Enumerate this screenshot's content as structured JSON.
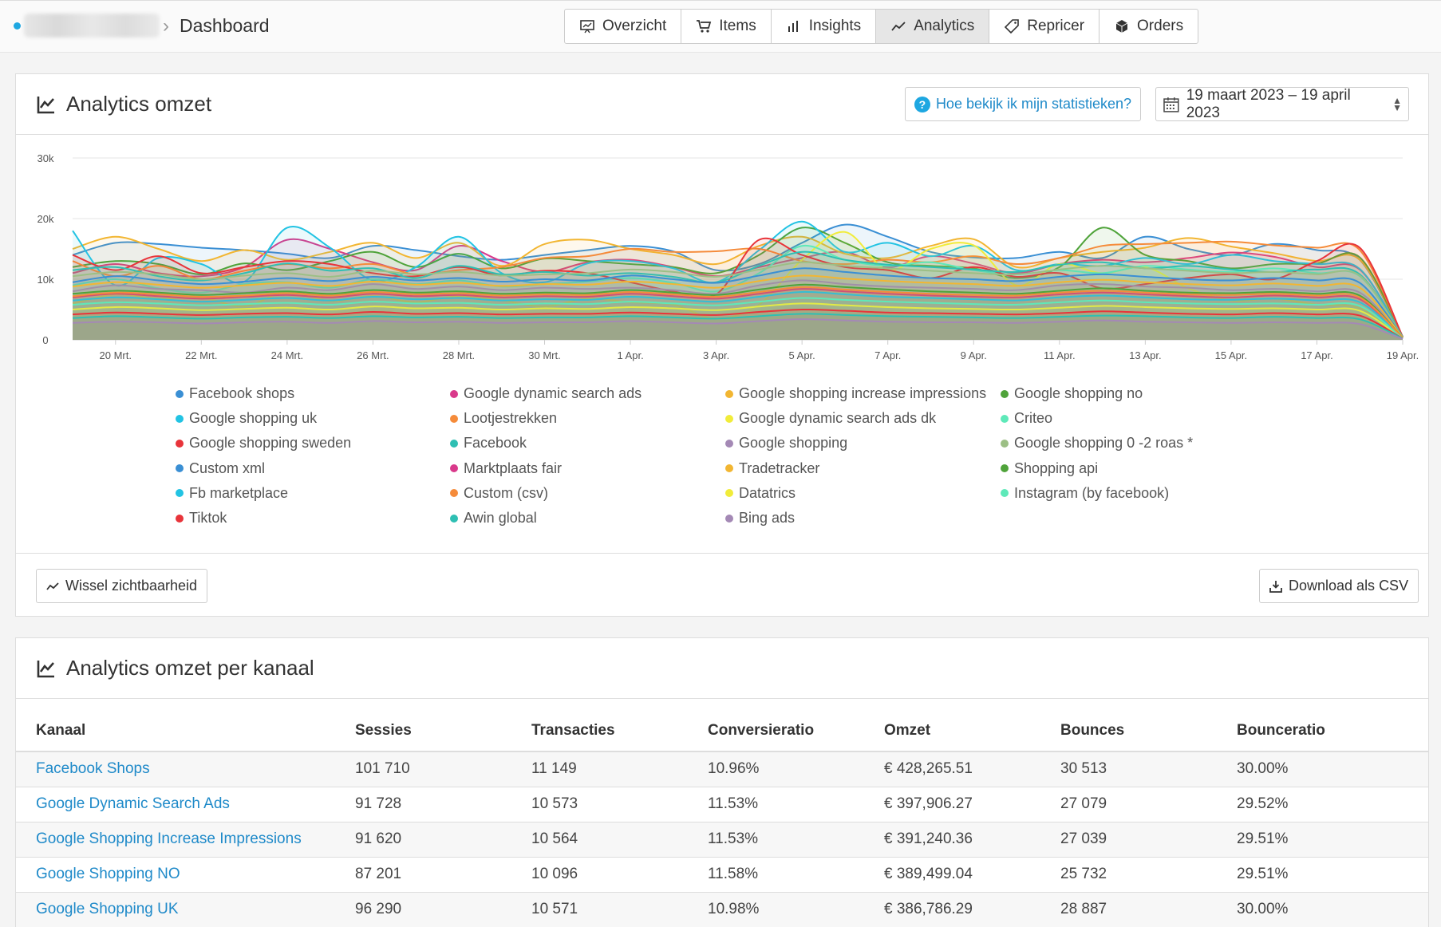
{
  "breadcrumb": {
    "title": "Dashboard"
  },
  "nav": [
    {
      "label": "Overzicht",
      "icon": "presentation-icon"
    },
    {
      "label": "Items",
      "icon": "cart-icon"
    },
    {
      "label": "Insights",
      "icon": "bars-icon"
    },
    {
      "label": "Analytics",
      "icon": "trend-icon",
      "active": true
    },
    {
      "label": "Repricer",
      "icon": "tag-icon"
    },
    {
      "label": "Orders",
      "icon": "box-icon"
    }
  ],
  "panel1": {
    "title": "Analytics omzet",
    "help_label": "Hoe bekijk ik mijn statistieken?",
    "date_range": "19 maart 2023 – 19 april 2023",
    "toggle_label": "Wissel zichtbaarheid",
    "csv_label": "Download als CSV"
  },
  "chart_data": {
    "type": "area",
    "ylim": [
      0,
      30000
    ],
    "y_ticks": [
      {
        "value": 0,
        "label": "0"
      },
      {
        "value": 10000,
        "label": "10k"
      },
      {
        "value": 20000,
        "label": "20k"
      },
      {
        "value": 30000,
        "label": "30k"
      }
    ],
    "x_tick_labels": [
      "20 Mrt.",
      "22 Mrt.",
      "24 Mrt.",
      "26 Mrt.",
      "28 Mrt.",
      "30 Mrt.",
      "1 Apr.",
      "3 Apr.",
      "5 Apr.",
      "7 Apr.",
      "9 Apr.",
      "11 Apr.",
      "13 Apr.",
      "15 Apr.",
      "17 Apr.",
      "19 Apr."
    ],
    "x": [
      "19 Mrt.",
      "20 Mrt.",
      "21 Mrt.",
      "22 Mrt.",
      "23 Mrt.",
      "24 Mrt.",
      "25 Mrt.",
      "26 Mrt.",
      "27 Mrt.",
      "28 Mrt.",
      "29 Mrt.",
      "30 Mrt.",
      "31 Mrt.",
      "1 Apr.",
      "2 Apr.",
      "3 Apr.",
      "4 Apr.",
      "5 Apr.",
      "6 Apr.",
      "7 Apr.",
      "8 Apr.",
      "9 Apr.",
      "10 Apr.",
      "11 Apr.",
      "12 Apr.",
      "13 Apr.",
      "14 Apr.",
      "15 Apr.",
      "16 Apr.",
      "17 Apr.",
      "18 Apr.",
      "19 Apr."
    ],
    "series": [
      {
        "name": "Facebook shops",
        "color": "#3a8fd4",
        "values": [
          14000,
          16000,
          15800,
          15200,
          14800,
          14200,
          13500,
          15500,
          14800,
          13800,
          13200,
          14000,
          14800,
          15500,
          14600,
          11500,
          12500,
          16000,
          19000,
          17000,
          14500,
          13600,
          13500,
          14500,
          13500,
          17000,
          15000,
          14000,
          15800,
          14800,
          13200,
          500
        ]
      },
      {
        "name": "Google dynamic search ads",
        "color": "#d9398b",
        "values": [
          11000,
          12500,
          11000,
          10500,
          12000,
          16500,
          15000,
          12800,
          11500,
          15500,
          13000,
          11200,
          12800,
          13200,
          12000,
          10500,
          12000,
          13500,
          14500,
          12000,
          13800,
          12600,
          11000,
          12500,
          13200,
          12800,
          13500,
          14400,
          13700,
          12000,
          11600,
          500
        ]
      },
      {
        "name": "Google shopping increase impressions",
        "color": "#f2b632",
        "values": [
          15000,
          17000,
          15000,
          13000,
          14800,
          13200,
          14500,
          16000,
          13500,
          16000,
          12200,
          15800,
          16500,
          15000,
          14000,
          12500,
          15500,
          17000,
          14200,
          13500,
          15500,
          16600,
          12000,
          13500,
          14500,
          15200,
          16800,
          15400,
          14300,
          13000,
          13200,
          500
        ]
      },
      {
        "name": "Google shopping no",
        "color": "#4fa33a",
        "values": [
          12000,
          13000,
          12500,
          10800,
          12600,
          11500,
          13000,
          14500,
          12000,
          14200,
          11800,
          13400,
          13000,
          12500,
          12000,
          11000,
          14000,
          18500,
          16000,
          12800,
          12200,
          11800,
          10200,
          12000,
          18500,
          14000,
          13000,
          11800,
          12500,
          12600,
          13600,
          500
        ]
      },
      {
        "name": "Google shopping uk",
        "color": "#22c3e3",
        "values": [
          18000,
          9000,
          13500,
          12500,
          9600,
          18500,
          15200,
          9800,
          12000,
          17000,
          11000,
          9500,
          12600,
          13000,
          11800,
          9500,
          14800,
          19500,
          14500,
          16000,
          13800,
          15500,
          11500,
          12500,
          12200,
          13500,
          12500,
          14000,
          13000,
          12500,
          11700,
          500
        ]
      },
      {
        "name": "Lootjestrekken",
        "color": "#f58b3a",
        "values": [
          13000,
          10500,
          12200,
          10000,
          11400,
          12500,
          11800,
          12500,
          10800,
          11500,
          12000,
          13500,
          13800,
          15000,
          14500,
          14600,
          15000,
          13000,
          12500,
          13200,
          12800,
          13800,
          12500,
          13500,
          15500,
          15800,
          16000,
          16200,
          15600,
          15200,
          14800,
          500
        ]
      },
      {
        "name": "Google dynamic search ads dk",
        "color": "#f1ec3a",
        "values": [
          6000,
          7500,
          6800,
          7000,
          5500,
          8000,
          6400,
          7200,
          6200,
          7200,
          6500,
          5500,
          6800,
          6200,
          5800,
          3500,
          5800,
          13200,
          17800,
          11500,
          15000,
          15600,
          9000,
          12500,
          11000,
          12000,
          8500,
          6500,
          6800,
          5800,
          5200,
          500
        ]
      },
      {
        "name": "Criteo",
        "color": "#5ee9b9",
        "values": [
          9000,
          10000,
          8500,
          7800,
          9200,
          9500,
          8600,
          10000,
          9200,
          9800,
          8800,
          9200,
          9600,
          10200,
          9400,
          8000,
          11000,
          15500,
          13200,
          12200,
          12800,
          11500,
          10800,
          11500,
          11000,
          12200,
          11600,
          11200,
          11800,
          11000,
          10500,
          500
        ]
      },
      {
        "name": "Google shopping sweden",
        "color": "#e8343a",
        "values": [
          14000,
          11500,
          13800,
          11000,
          12000,
          13000,
          12500,
          11000,
          10500,
          12000,
          10600,
          11400,
          11000,
          9500,
          8000,
          7500,
          16500,
          14000,
          12000,
          11500,
          10200,
          12000,
          10400,
          11000,
          8500,
          9200,
          10200,
          10800,
          10000,
          13000,
          15200,
          500
        ]
      },
      {
        "name": "Facebook",
        "color": "#2ebfb3",
        "values": [
          11500,
          12000,
          10500,
          9800,
          11000,
          12600,
          11400,
          11800,
          10200,
          12200,
          10800,
          11200,
          10600,
          11000,
          10400,
          9500,
          12200,
          14500,
          13200,
          12400,
          12000,
          11600,
          11200,
          12400,
          12800,
          11800,
          12200,
          11600,
          11200,
          11600,
          10800,
          500
        ]
      },
      {
        "name": "Google shopping",
        "color": "#a489b5",
        "values": [
          8000,
          9000,
          8400,
          8200,
          7800,
          8600,
          8200,
          9200,
          8400,
          8800,
          8200,
          8600,
          8400,
          8600,
          8200,
          7600,
          9000,
          9800,
          9200,
          8800,
          8600,
          8400,
          8200,
          9000,
          9200,
          8800,
          8600,
          8200,
          8400,
          8000,
          7800,
          400
        ]
      },
      {
        "name": "Google shopping 0 -2 roas *",
        "color": "#9cbf85",
        "values": [
          10500,
          11200,
          10800,
          10000,
          10600,
          11000,
          10400,
          11400,
          10800,
          11200,
          10600,
          10800,
          11000,
          11600,
          11200,
          10400,
          11600,
          12800,
          12200,
          11800,
          11400,
          11000,
          10800,
          11600,
          12200,
          11800,
          11400,
          11000,
          11200,
          10800,
          10600,
          400
        ]
      },
      {
        "name": "Custom xml",
        "color": "#3a8fd4",
        "values": [
          9500,
          10500,
          9800,
          9200,
          9600,
          10200,
          9700,
          10400,
          9800,
          10200,
          9600,
          10000,
          9800,
          10600,
          10000,
          9400,
          10600,
          11800,
          11200,
          10600,
          10200,
          10000,
          9700,
          10400,
          10800,
          10400,
          10000,
          9800,
          10200,
          9800,
          9400,
          400
        ]
      },
      {
        "name": "Marktplaats fair",
        "color": "#d9398b",
        "values": [
          7000,
          7600,
          7200,
          6800,
          7100,
          7400,
          7000,
          7600,
          7200,
          7400,
          7000,
          7200,
          7100,
          7600,
          7200,
          6800,
          7600,
          8400,
          8000,
          7600,
          7300,
          7100,
          7000,
          7500,
          7800,
          7500,
          7200,
          7000,
          7300,
          7000,
          6700,
          300
        ]
      },
      {
        "name": "Tradetracker",
        "color": "#f2b632",
        "values": [
          8800,
          9500,
          9100,
          8600,
          9000,
          9400,
          8900,
          9600,
          9100,
          9400,
          8900,
          9200,
          9100,
          9600,
          9200,
          8600,
          9700,
          10600,
          10100,
          9700,
          9400,
          9200,
          8900,
          9500,
          9900,
          9500,
          9200,
          9000,
          9300,
          8900,
          8600,
          400
        ]
      },
      {
        "name": "Shopping api",
        "color": "#4fa33a",
        "values": [
          7600,
          8100,
          7800,
          7400,
          7700,
          8000,
          7600,
          8200,
          7800,
          8000,
          7600,
          7800,
          7700,
          8200,
          7800,
          7400,
          8300,
          9100,
          8700,
          8300,
          8000,
          7800,
          7600,
          8100,
          8500,
          8100,
          7800,
          7700,
          7900,
          7600,
          7300,
          300
        ]
      },
      {
        "name": "Fb marketplace",
        "color": "#22c3e3",
        "values": [
          6500,
          7000,
          6700,
          6300,
          6600,
          6900,
          6500,
          7100,
          6700,
          6900,
          6500,
          6700,
          6600,
          7100,
          6700,
          6300,
          7100,
          7900,
          7500,
          7100,
          6900,
          6700,
          6500,
          7000,
          7300,
          7000,
          6700,
          6600,
          6800,
          6500,
          6200,
          300
        ]
      },
      {
        "name": "Custom (csv)",
        "color": "#f58b3a",
        "values": [
          7200,
          7800,
          7500,
          7100,
          7300,
          7700,
          7300,
          7900,
          7500,
          7700,
          7300,
          7500,
          7400,
          7900,
          7500,
          7100,
          7900,
          8700,
          8300,
          7900,
          7600,
          7400,
          7300,
          7800,
          8100,
          7800,
          7500,
          7400,
          7600,
          7300,
          7000,
          300
        ]
      },
      {
        "name": "Datatrics",
        "color": "#f1ec3a",
        "values": [
          5000,
          5400,
          5200,
          4900,
          5100,
          5300,
          5000,
          5500,
          5200,
          5300,
          5000,
          5200,
          5100,
          5400,
          5200,
          4900,
          5500,
          6000,
          5700,
          5400,
          5200,
          5100,
          5000,
          5300,
          5600,
          5400,
          5200,
          5100,
          5200,
          5000,
          4800,
          200
        ]
      },
      {
        "name": "Instagram (by facebook)",
        "color": "#5ee9b9",
        "values": [
          5800,
          6200,
          6000,
          5700,
          5900,
          6100,
          5800,
          6300,
          6000,
          6100,
          5800,
          6000,
          5900,
          6300,
          6000,
          5700,
          6300,
          6900,
          6600,
          6300,
          6100,
          5900,
          5800,
          6200,
          6500,
          6200,
          6000,
          5900,
          6000,
          5800,
          5600,
          200
        ]
      },
      {
        "name": "Tiktok",
        "color": "#e8343a",
        "values": [
          4200,
          4500,
          4300,
          4100,
          4300,
          4400,
          4200,
          4600,
          4300,
          4400,
          4200,
          4300,
          4300,
          4500,
          4300,
          4100,
          4600,
          5000,
          4800,
          4500,
          4400,
          4300,
          4200,
          4400,
          4700,
          4500,
          4300,
          4200,
          4400,
          4200,
          4000,
          200
        ]
      },
      {
        "name": "Awin global",
        "color": "#2ebfb3",
        "values": [
          3600,
          3900,
          3700,
          3500,
          3700,
          3800,
          3600,
          3900,
          3700,
          3800,
          3600,
          3700,
          3700,
          3900,
          3700,
          3500,
          3900,
          4300,
          4100,
          3900,
          3800,
          3700,
          3600,
          3800,
          4000,
          3900,
          3700,
          3600,
          3800,
          3600,
          3400,
          200
        ]
      },
      {
        "name": "Bing ads",
        "color": "#a489b5",
        "values": [
          2800,
          3000,
          2900,
          2700,
          2900,
          3000,
          2800,
          3100,
          2900,
          3000,
          2800,
          2900,
          2900,
          3100,
          2900,
          2700,
          3100,
          3400,
          3200,
          3000,
          2900,
          2900,
          2800,
          3000,
          3200,
          3000,
          2900,
          2800,
          2900,
          2800,
          2600,
          150
        ]
      }
    ]
  },
  "panel2": {
    "title": "Analytics omzet per kanaal",
    "columns": [
      "Kanaal",
      "Sessies",
      "Transacties",
      "Conversieratio",
      "Omzet",
      "Bounces",
      "Bounceratio"
    ],
    "rows": [
      [
        "Facebook Shops",
        "101 710",
        "11 149",
        "10.96%",
        "€ 428,265.51",
        "30 513",
        "30.00%"
      ],
      [
        "Google Dynamic Search Ads",
        "91 728",
        "10 573",
        "11.53%",
        "€ 397,906.27",
        "27 079",
        "29.52%"
      ],
      [
        "Google Shopping Increase Impressions",
        "91 620",
        "10 564",
        "11.53%",
        "€ 391,240.36",
        "27 039",
        "29.51%"
      ],
      [
        "Google Shopping NO",
        "87 201",
        "10 096",
        "11.58%",
        "€ 389,499.04",
        "25 732",
        "29.51%"
      ],
      [
        "Google Shopping UK",
        "96 290",
        "10 571",
        "10.98%",
        "€ 386,786.29",
        "28 887",
        "30.00%"
      ]
    ]
  }
}
